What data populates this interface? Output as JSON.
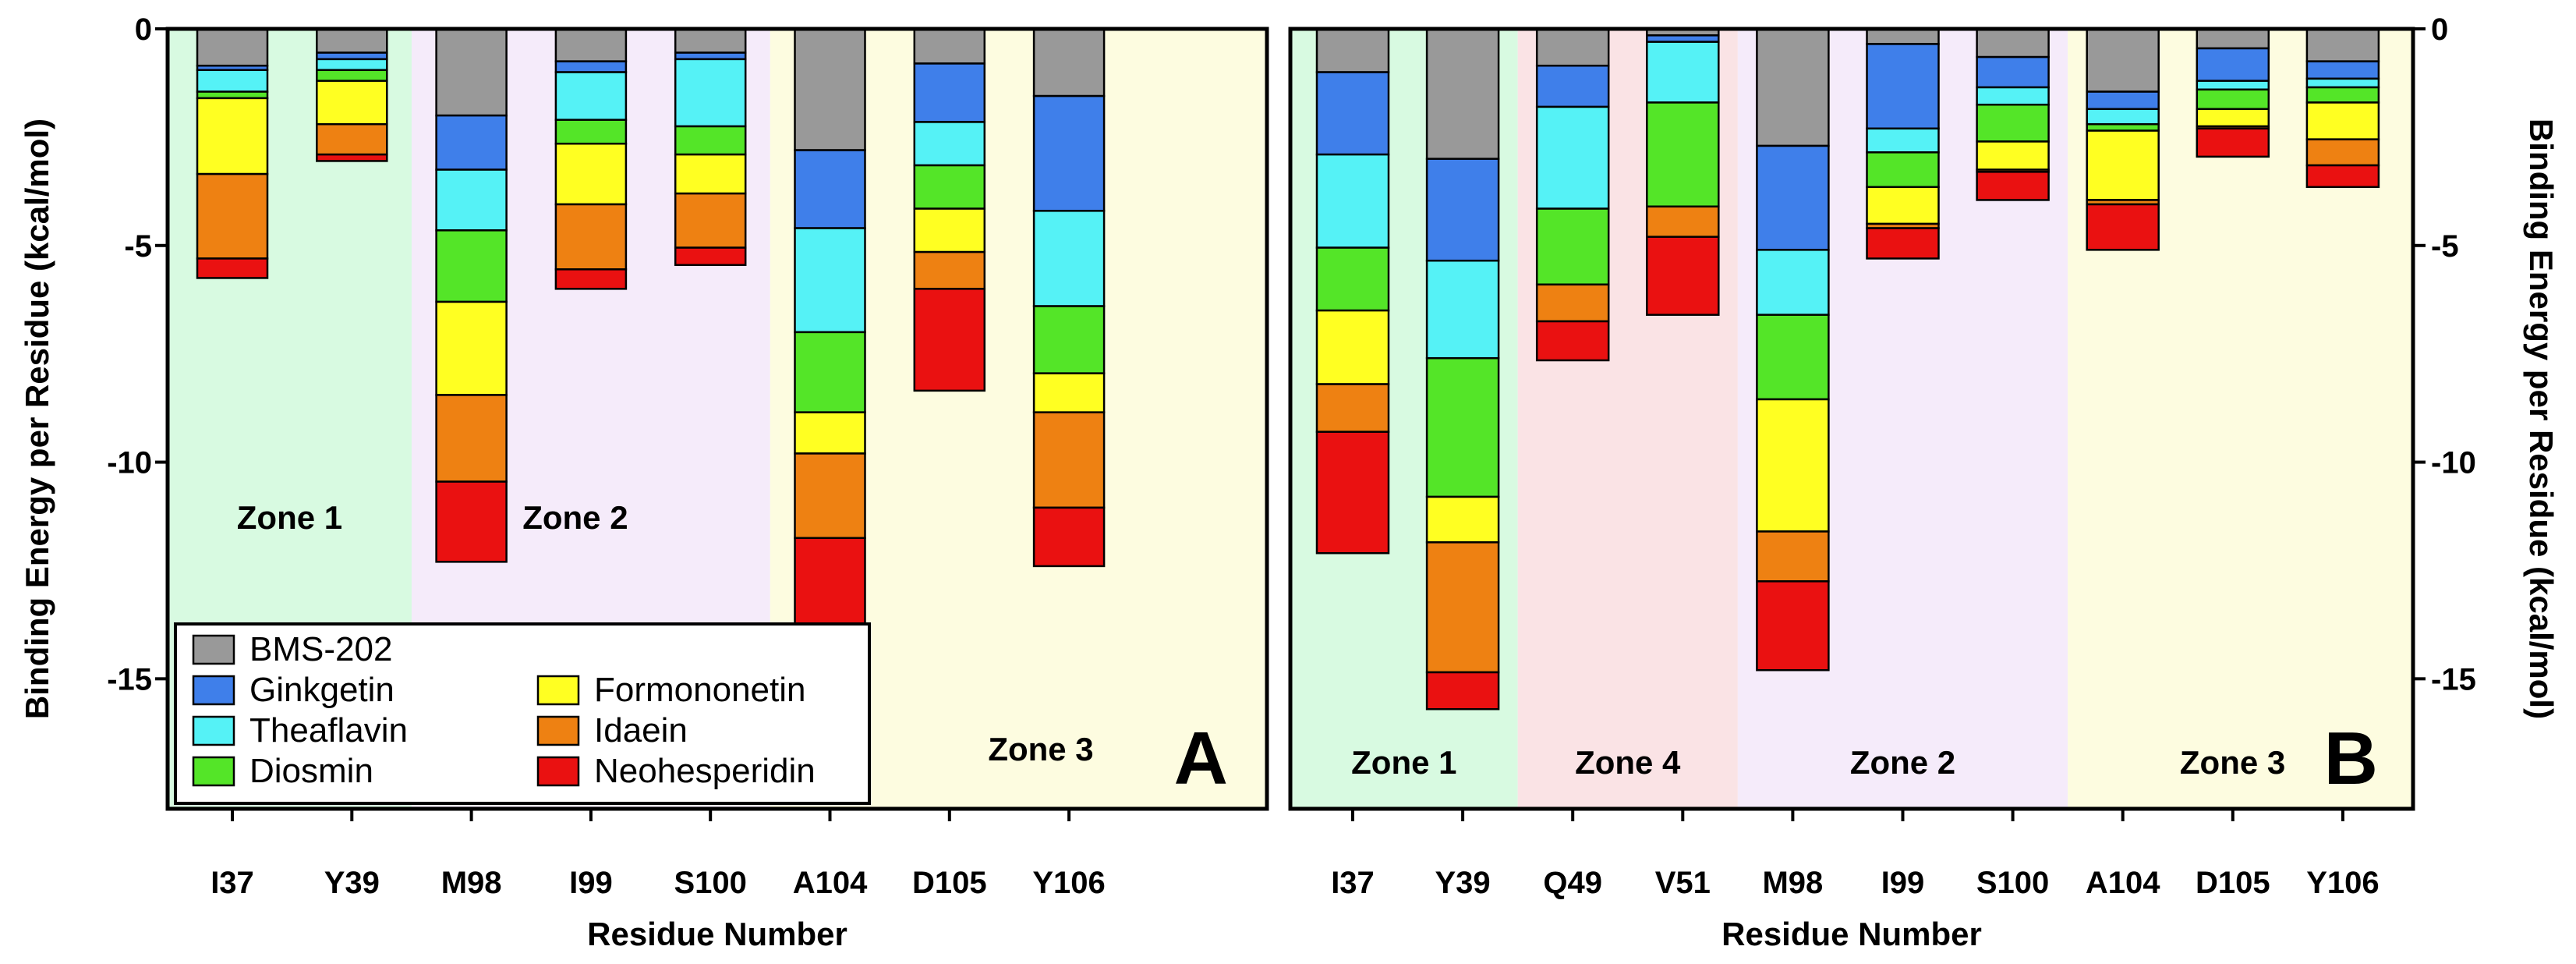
{
  "chart_data": {
    "type": "bar",
    "stacked": true,
    "stack_order": [
      "BMS-202",
      "Ginkgetin",
      "Theaflavin",
      "Diosmin",
      "Formononetin",
      "Idaein",
      "Neohesperidin"
    ],
    "colors": {
      "BMS-202": "#999999",
      "Ginkgetin": "#3f7fea",
      "Theaflavin": "#55f2f6",
      "Diosmin": "#54e528",
      "Formononetin": "#ffff22",
      "Idaein": "#ee8112",
      "Neohesperidin": "#ea1111"
    },
    "zone_colors": {
      "Zone 1": "#d8fae1",
      "Zone 2": "#f5ebfa",
      "Zone 3": "#fdfce0",
      "Zone 4": "#fae3e5"
    },
    "legend": {
      "location": "bottom-left of panel A",
      "entries": [
        "BMS-202",
        "Ginkgetin",
        "Theaflavin",
        "Diosmin",
        "Formononetin",
        "Idaein",
        "Neohesperidin"
      ]
    },
    "y_axis": {
      "label": "Binding Energy per Residue (kcal/mol)",
      "ylim": [
        -18,
        0
      ],
      "ticks": [
        0,
        -5,
        -10,
        -15
      ],
      "tick_labels": [
        "0",
        "-5",
        "-10",
        "-15"
      ]
    },
    "x_axis_label": "Residue Number",
    "panels": [
      {
        "panel": "A",
        "y_axis_side": "left",
        "categories": [
          "I37",
          "Y39",
          "M98",
          "I99",
          "S100",
          "A104",
          "D105",
          "Y106"
        ],
        "zones": [
          {
            "label": "Zone 1",
            "from_category": 0,
            "to_category": 1
          },
          {
            "label": "Zone 2",
            "from_category": 2,
            "to_category": 4
          },
          {
            "label": "Zone 3",
            "from_category": 5,
            "to_category": 7
          }
        ],
        "series": [
          {
            "name": "BMS-202",
            "values": [
              -0.85,
              -0.55,
              -2.0,
              -0.75,
              -0.55,
              -2.8,
              -0.8,
              -1.55
            ]
          },
          {
            "name": "Ginkgetin",
            "values": [
              -0.1,
              -0.15,
              -1.25,
              -0.25,
              -0.15,
              -1.8,
              -1.35,
              -2.65
            ]
          },
          {
            "name": "Theaflavin",
            "values": [
              -0.5,
              -0.25,
              -1.4,
              -1.1,
              -1.55,
              -2.4,
              -1.0,
              -2.2
            ]
          },
          {
            "name": "Diosmin",
            "values": [
              -0.15,
              -0.25,
              -1.65,
              -0.55,
              -0.65,
              -1.85,
              -1.0,
              -1.55
            ]
          },
          {
            "name": "Formononetin",
            "values": [
              -1.75,
              -1.0,
              -2.15,
              -1.4,
              -0.9,
              -0.95,
              -1.0,
              -0.9
            ]
          },
          {
            "name": "Idaein",
            "values": [
              -1.95,
              -0.7,
              -2.0,
              -1.5,
              -1.25,
              -1.95,
              -0.85,
              -2.2
            ]
          },
          {
            "name": "Neohesperidin",
            "values": [
              -0.45,
              -0.15,
              -1.85,
              -0.45,
              -0.4,
              -2.25,
              -2.35,
              -1.35
            ]
          }
        ]
      },
      {
        "panel": "B",
        "y_axis_side": "right",
        "categories": [
          "I37",
          "Y39",
          "Q49",
          "V51",
          "M98",
          "I99",
          "S100",
          "A104",
          "D105",
          "Y106"
        ],
        "zones": [
          {
            "label": "Zone 1",
            "from_category": 0,
            "to_category": 1
          },
          {
            "label": "Zone 4",
            "from_category": 2,
            "to_category": 3
          },
          {
            "label": "Zone 2",
            "from_category": 4,
            "to_category": 6
          },
          {
            "label": "Zone 3",
            "from_category": 7,
            "to_category": 9
          }
        ],
        "series": [
          {
            "name": "BMS-202",
            "values": [
              -1.0,
              -3.0,
              -0.85,
              -0.15,
              -2.7,
              -0.35,
              -0.65,
              -1.45,
              -0.45,
              -0.75
            ]
          },
          {
            "name": "Ginkgetin",
            "values": [
              -1.9,
              -2.35,
              -0.95,
              -0.15,
              -2.4,
              -1.95,
              -0.7,
              -0.4,
              -0.75,
              -0.4
            ]
          },
          {
            "name": "Theaflavin",
            "values": [
              -2.15,
              -2.25,
              -2.35,
              -1.4,
              -1.5,
              -0.55,
              -0.4,
              -0.35,
              -0.2,
              -0.2
            ]
          },
          {
            "name": "Diosmin",
            "values": [
              -1.45,
              -3.2,
              -1.75,
              -2.4,
              -1.95,
              -0.8,
              -0.85,
              -0.15,
              -0.45,
              -0.35
            ]
          },
          {
            "name": "Formononetin",
            "values": [
              -1.7,
              -1.05,
              0,
              0,
              -3.05,
              -0.85,
              -0.65,
              -1.6,
              -0.4,
              -0.85
            ]
          },
          {
            "name": "Idaein",
            "values": [
              -1.1,
              -3.0,
              -0.85,
              -0.7,
              -1.15,
              -0.1,
              -0.05,
              -0.1,
              -0.05,
              -0.6
            ]
          },
          {
            "name": "Neohesperidin",
            "values": [
              -2.8,
              -0.85,
              -0.9,
              -1.8,
              -2.05,
              -0.7,
              -0.65,
              -1.05,
              -0.65,
              -0.5
            ]
          }
        ]
      }
    ]
  }
}
